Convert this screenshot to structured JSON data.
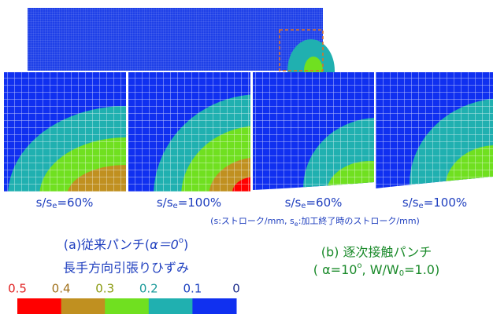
{
  "panels": [
    {
      "label": {
        "main": "s/s",
        "sub": "e",
        "rest": "=60%"
      }
    },
    {
      "label": {
        "main": "s/s",
        "sub": "e",
        "rest": "=100%"
      }
    },
    {
      "label": {
        "main": "s/s",
        "sub": "e",
        "rest": "=60%"
      }
    },
    {
      "label": {
        "main": "s/s",
        "sub": "e",
        "rest": "=100%"
      }
    }
  ],
  "note": {
    "a": "(s:ストローク/mm, s",
    "sub": "e",
    "b": ":加工終了時のストローク/mm)"
  },
  "caption_a": {
    "line1": "(a)従来パンチ(",
    "alpha": "α＝0",
    "sup": "o",
    "end": ")",
    "line2": "長手方向引張りひずみ"
  },
  "caption_b": {
    "line1": "(b) 逐次接触パンチ",
    "a": "( α=10",
    "sup": "o",
    "b": ", W/W",
    "sub": "0",
    "c": "=1.0)"
  },
  "colorbar": {
    "labels": [
      0.5,
      0.4,
      0.3,
      0.2,
      0.1,
      0
    ],
    "label_colors": [
      "#e02020",
      "#a0701a",
      "#8a9a10",
      "#1a9a9a",
      "#1a3fbf",
      "#1a2a8a"
    ],
    "colors": [
      "#ff0000",
      "#c09020",
      "#70e020",
      "#20b0b0",
      "#1030f0"
    ]
  }
}
